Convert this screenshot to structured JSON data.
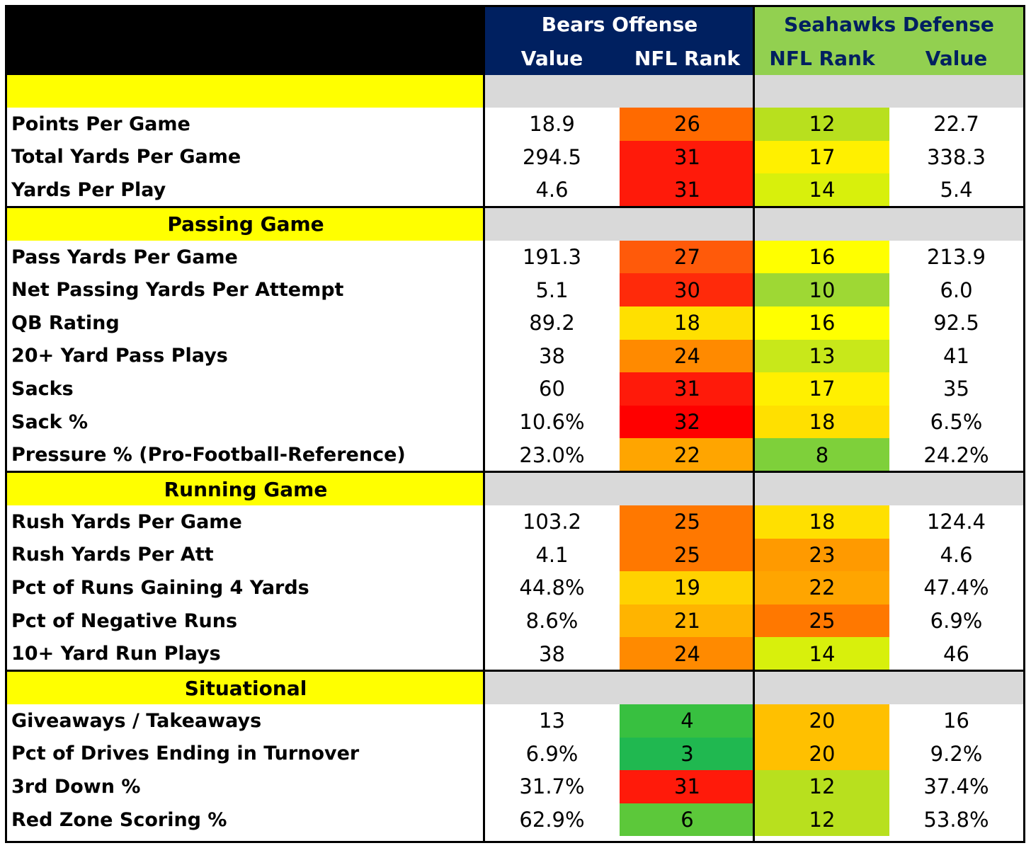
{
  "header": {
    "bears_group": "Bears Offense",
    "seahawks_group": "Seahawks Defense",
    "columns": [
      "Value",
      "NFL Rank",
      "NFL Rank",
      "Value"
    ]
  },
  "colors": {
    "navy": "#002060",
    "green_header": "#92D050",
    "yellow": "#FFFF00",
    "gray": "#D9D9D9",
    "black": "#000000"
  },
  "sections": [
    {
      "title": "",
      "rows": [
        {
          "label": "Points Per Game",
          "bears_value": "18.9",
          "bears_rank": "26",
          "bears_rank_color": "#FF6A00",
          "sea_rank": "12",
          "sea_rank_color": "#B8E01E",
          "sea_value": "22.7"
        },
        {
          "label": "Total Yards Per Game",
          "bears_value": "294.5",
          "bears_rank": "31",
          "bears_rank_color": "#FF1A0A",
          "sea_rank": "17",
          "sea_rank_color": "#FFF000",
          "sea_value": "338.3"
        },
        {
          "label": "Yards Per Play",
          "bears_value": "4.6",
          "bears_rank": "31",
          "bears_rank_color": "#FF1A0A",
          "sea_rank": "14",
          "sea_rank_color": "#D8F00C",
          "sea_value": "5.4"
        }
      ]
    },
    {
      "title": "Passing Game",
      "rows": [
        {
          "label": "Pass Yards Per Game",
          "bears_value": "191.3",
          "bears_rank": "27",
          "bears_rank_color": "#FF5A0A",
          "sea_rank": "16",
          "sea_rank_color": "#FFFF00",
          "sea_value": "213.9"
        },
        {
          "label": "Net Passing Yards Per Attempt",
          "bears_value": "5.1",
          "bears_rank": "30",
          "bears_rank_color": "#FF2A0A",
          "sea_rank": "10",
          "sea_rank_color": "#9ED834",
          "sea_value": "6.0"
        },
        {
          "label": "QB Rating",
          "bears_value": "89.2",
          "bears_rank": "18",
          "bears_rank_color": "#FFE000",
          "sea_rank": "16",
          "sea_rank_color": "#FFFF00",
          "sea_value": "92.5"
        },
        {
          "label": "20+ Yard Pass Plays",
          "bears_value": "38",
          "bears_rank": "24",
          "bears_rank_color": "#FF8A00",
          "sea_rank": "13",
          "sea_rank_color": "#C8E81A",
          "sea_value": "41"
        },
        {
          "label": "Sacks",
          "bears_value": "60",
          "bears_rank": "31",
          "bears_rank_color": "#FF1A0A",
          "sea_rank": "17",
          "sea_rank_color": "#FFF000",
          "sea_value": "35"
        },
        {
          "label": "Sack %",
          "bears_value": "10.6%",
          "bears_rank": "32",
          "bears_rank_color": "#FF0000",
          "sea_rank": "18",
          "sea_rank_color": "#FFE000",
          "sea_value": "6.5%"
        },
        {
          "label": "Pressure % (Pro-Football-Reference)",
          "bears_value": "23.0%",
          "bears_rank": "22",
          "bears_rank_color": "#FFA500",
          "sea_rank": "8",
          "sea_rank_color": "#7ED03A",
          "sea_value": "24.2%"
        }
      ]
    },
    {
      "title": "Running Game",
      "rows": [
        {
          "label": "Rush Yards Per Game",
          "bears_value": "103.2",
          "bears_rank": "25",
          "bears_rank_color": "#FF7800",
          "sea_rank": "18",
          "sea_rank_color": "#FFE000",
          "sea_value": "124.4"
        },
        {
          "label": "Rush Yards Per Att",
          "bears_value": "4.1",
          "bears_rank": "25",
          "bears_rank_color": "#FF7800",
          "sea_rank": "23",
          "sea_rank_color": "#FF9A00",
          "sea_value": "4.6"
        },
        {
          "label": "Pct of Runs Gaining 4 Yards",
          "bears_value": "44.8%",
          "bears_rank": "19",
          "bears_rank_color": "#FFD200",
          "sea_rank": "22",
          "sea_rank_color": "#FFA500",
          "sea_value": "47.4%"
        },
        {
          "label": "Pct of Negative Runs",
          "bears_value": "8.6%",
          "bears_rank": "21",
          "bears_rank_color": "#FFB400",
          "sea_rank": "25",
          "sea_rank_color": "#FF7800",
          "sea_value": "6.9%"
        },
        {
          "label": "10+ Yard Run Plays",
          "bears_value": "38",
          "bears_rank": "24",
          "bears_rank_color": "#FF8A00",
          "sea_rank": "14",
          "sea_rank_color": "#D8F00C",
          "sea_value": "46"
        }
      ]
    },
    {
      "title": "Situational",
      "rows": [
        {
          "label": "Giveaways / Takeaways",
          "bears_value": "13",
          "bears_rank": "4",
          "bears_rank_color": "#38C040",
          "sea_rank": "20",
          "sea_rank_color": "#FFC000",
          "sea_value": "16"
        },
        {
          "label": "Pct of Drives Ending in Turnover",
          "bears_value": "6.9%",
          "bears_rank": "3",
          "bears_rank_color": "#20B850",
          "sea_rank": "20",
          "sea_rank_color": "#FFC000",
          "sea_value": "9.2%"
        },
        {
          "label": "3rd Down %",
          "bears_value": "31.7%",
          "bears_rank": "31",
          "bears_rank_color": "#FF1A0A",
          "sea_rank": "12",
          "sea_rank_color": "#B8E01E",
          "sea_value": "37.4%"
        },
        {
          "label": "Red Zone Scoring %",
          "bears_value": "62.9%",
          "bears_rank": "6",
          "bears_rank_color": "#5CC83A",
          "sea_rank": "12",
          "sea_rank_color": "#B8E01E",
          "sea_value": "53.8%"
        }
      ]
    }
  ]
}
